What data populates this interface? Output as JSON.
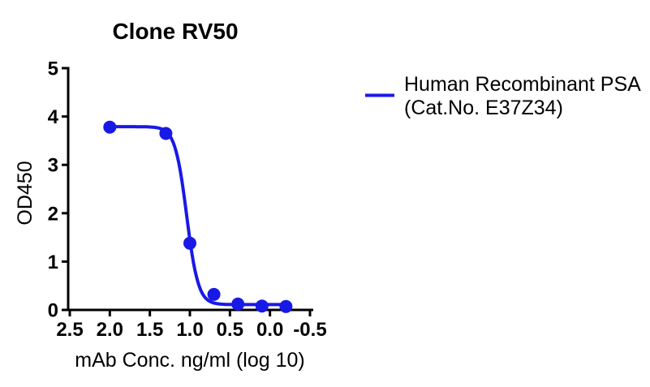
{
  "title": "Clone RV50",
  "legend": {
    "label_line1": "Human Recombinant PSA",
    "label_line2": "(Cat.No. E37Z34)",
    "line_color": "#1919e6"
  },
  "chart_data": {
    "type": "scatter",
    "title": "Clone RV50",
    "xlabel": "mAb Conc. ng/ml (log 10)",
    "ylabel": "OD450",
    "x_axis": {
      "min": 2.5,
      "max": -0.5,
      "reversed": true,
      "ticks": [
        {
          "v": 2.5,
          "label": "2.5"
        },
        {
          "v": 2.0,
          "label": "2.0"
        },
        {
          "v": 1.5,
          "label": "1.5"
        },
        {
          "v": 1.0,
          "label": "1.0"
        },
        {
          "v": 0.5,
          "label": "0.5"
        },
        {
          "v": 0.0,
          "label": "0.0"
        },
        {
          "v": -0.5,
          "label": "-0.5"
        }
      ]
    },
    "y_axis": {
      "min": 0,
      "max": 5,
      "ticks": [
        {
          "v": 0,
          "label": "0"
        },
        {
          "v": 1,
          "label": "1"
        },
        {
          "v": 2,
          "label": "2"
        },
        {
          "v": 3,
          "label": "3"
        },
        {
          "v": 4,
          "label": "4"
        },
        {
          "v": 5,
          "label": "5"
        }
      ]
    },
    "grid": false,
    "legend_position": "right",
    "series": [
      {
        "name": "Human Recombinant PSA (Cat.No. E37Z34)",
        "color": "#1919e6",
        "marker": "circle",
        "points": [
          {
            "x": 2.0,
            "y": 3.78
          },
          {
            "x": 1.3,
            "y": 3.65
          },
          {
            "x": 1.0,
            "y": 1.38
          },
          {
            "x": 0.7,
            "y": 0.32
          },
          {
            "x": 0.4,
            "y": 0.12
          },
          {
            "x": 0.1,
            "y": 0.08
          },
          {
            "x": -0.2,
            "y": 0.07
          }
        ],
        "curve_fit": {
          "type": "4PL sigmoid",
          "top": 3.79,
          "bottom": 0.11,
          "logEC50": 1.04,
          "hillslope": 6,
          "x_start": 2.0,
          "x_end": -0.2
        }
      }
    ],
    "axis_color": "#000000"
  }
}
